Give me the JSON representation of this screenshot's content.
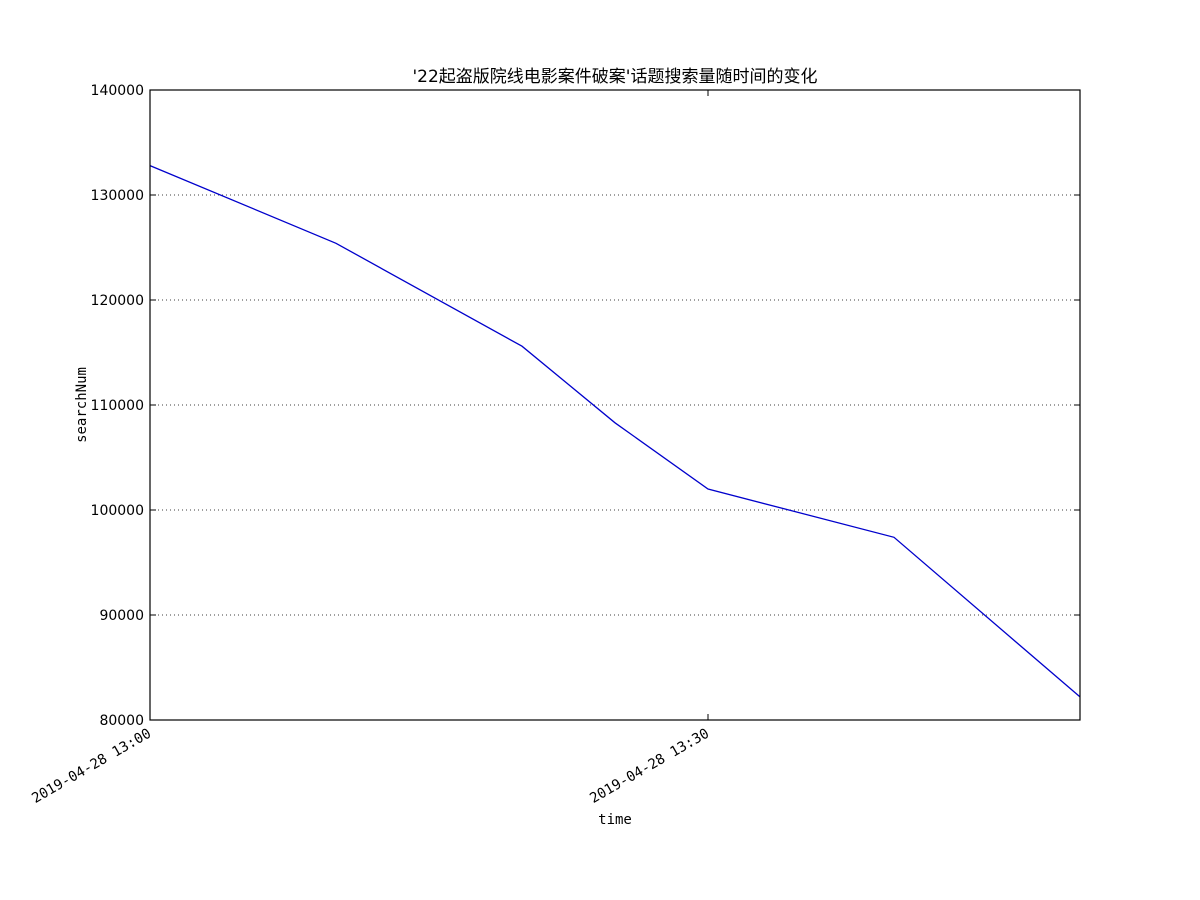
{
  "chart_data": {
    "type": "line",
    "title": "'22起盗版院线电影案件破案'话题搜索量随时间的变化",
    "xlabel": "time",
    "ylabel": "searchNum",
    "x_ticks": [
      "2019-04-28 13:00",
      "2019-04-28 13:30"
    ],
    "ylim": [
      80000,
      140000
    ],
    "y_ticks": [
      80000,
      90000,
      100000,
      110000,
      120000,
      130000,
      140000
    ],
    "grid": "horizontal-dotted",
    "line_color": "#0000cc",
    "x": [
      "2019-04-28 13:00",
      "2019-04-28 13:10",
      "2019-04-28 13:20",
      "2019-04-28 13:25",
      "2019-04-28 13:30",
      "2019-04-28 13:40",
      "2019-04-28 13:50"
    ],
    "values": [
      132800,
      125400,
      115600,
      108300,
      102000,
      97400,
      82200
    ]
  }
}
